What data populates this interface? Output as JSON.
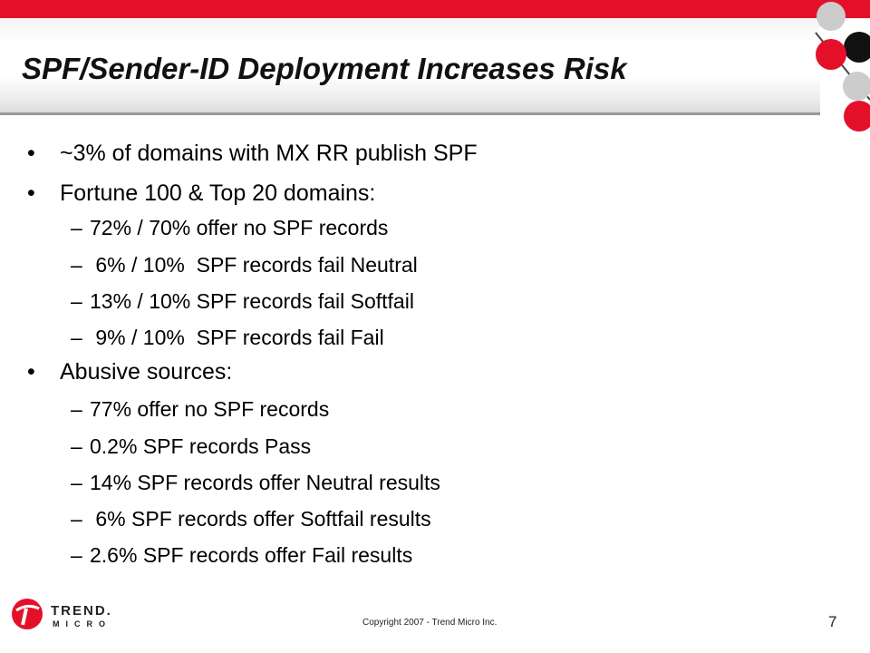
{
  "slide": {
    "title": "SPF/Sender-ID Deployment Increases Risk",
    "bullets": [
      {
        "level": 1,
        "text": "~3% of domains with MX RR publish SPF"
      },
      {
        "level": 1,
        "text": "Fortune 100 & Top 20 domains:"
      },
      {
        "level": 2,
        "text": "72% / 70% offer no SPF records"
      },
      {
        "level": 2,
        "text": " 6% / 10%  SPF records fail Neutral"
      },
      {
        "level": 2,
        "text": "13% / 10% SPF records fail Softfail"
      },
      {
        "level": 2,
        "text": " 9% / 10%  SPF records fail Fail"
      },
      {
        "level": 1,
        "text": "Abusive sources:"
      },
      {
        "level": 2,
        "text": "77% offer no SPF records"
      },
      {
        "level": 2,
        "text": "0.2% SPF records Pass"
      },
      {
        "level": 2,
        "text": "14% SPF records offer Neutral results"
      },
      {
        "level": 2,
        "text": " 6% SPF records offer Softfail results"
      },
      {
        "level": 2,
        "text": "2.6% SPF records offer Fail results"
      }
    ],
    "bullet_marks": {
      "level1": "•",
      "level2": "–"
    }
  },
  "footer": {
    "logo_line1": "TREND.",
    "logo_line2": "MICRO",
    "copyright": "Copyright 2007 - Trend Micro Inc.",
    "page_number": "7"
  },
  "colors": {
    "accent_red": "#e4102a",
    "circle_gray": "#c8c8c8",
    "circle_black": "#000000"
  }
}
